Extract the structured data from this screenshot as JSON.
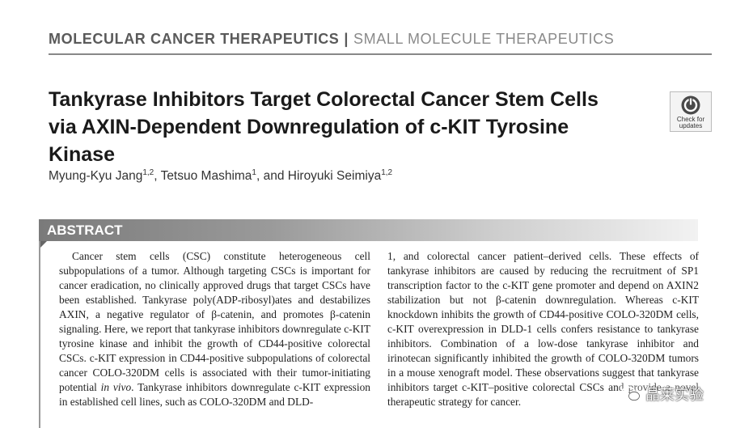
{
  "header": {
    "journal": "MOLECULAR CANCER THERAPEUTICS",
    "separator": "|",
    "section": "SMALL MOLECULE THERAPEUTICS"
  },
  "article": {
    "title": "Tankyrase Inhibitors Target Colorectal Cancer Stem Cells via AXIN-Dependent Downregulation of c-KIT Tyrosine Kinase",
    "authors": [
      {
        "name": "Myung-Kyu Jang",
        "aff": "1,2",
        "sep": ", "
      },
      {
        "name": "Tetsuo Mashima",
        "aff": "1",
        "sep": ", and "
      },
      {
        "name": "Hiroyuki Seimiya",
        "aff": "1,2",
        "sep": ""
      }
    ]
  },
  "badge": {
    "line1": "Check for",
    "line2": "updates",
    "icon": "check-for-updates-icon"
  },
  "abstract": {
    "label": "ABSTRACT",
    "left_pre": "Cancer stem cells (CSC) constitute heterogeneous cell subpopulations of a tumor. Although targeting CSCs is important for cancer eradication, no clinically approved drugs that target CSCs have been established. Tankyrase poly(ADP-ribosyl)ates and destabilizes AXIN, a negative regulator of β-catenin, and promotes β-catenin signaling. Here, we report that tankyrase inhibitors downregulate c-KIT tyrosine kinase and inhibit the growth of CD44-positive colorectal CSCs. c-KIT expression in CD44-positive subpopulations of colorectal cancer COLO-320DM cells is associated with their tumor-initiating potential ",
    "left_italic": "in vivo",
    "left_post": ". Tankyrase inhibitors downregulate c-KIT expression in established cell lines, such as COLO-320DM and DLD-",
    "right": "1, and colorectal cancer patient–derived cells. These effects of tankyrase inhibitors are caused by reducing the recruitment of SP1 transcription factor to the c-KIT gene promoter and depend on AXIN2 stabilization but not β-catenin downregulation. Whereas c-KIT knockdown inhibits the growth of CD44-positive COLO-320DM cells, c-KIT overexpression in DLD-1 cells confers resistance to tankyrase inhibitors. Combination of a low-dose tankyrase inhibitor and irinotecan significantly inhibited the growth of COLO-320DM tumors in a mouse xenograft model. These observations suggest that tankyrase inhibitors target c-KIT–positive colorectal CSCs and provide a novel therapeutic strategy for cancer."
  },
  "watermark": {
    "text": "晶莱实验",
    "icon": "wechat-icon"
  },
  "colors": {
    "header_dark": "#5a5a5a",
    "header_light": "#8a8a8a",
    "abstract_bar": "#7a7a7a"
  }
}
